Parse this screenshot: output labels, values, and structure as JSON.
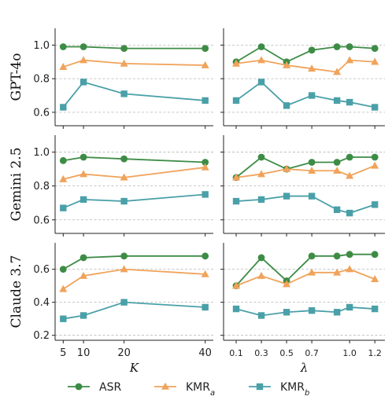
{
  "colors": {
    "ASR": "#3d8c45",
    "KMR_a": "#f0a35b",
    "KMR_b": "#4aa0a8"
  },
  "legend": [
    {
      "key": "ASR",
      "label": "ASR",
      "marker": "circle"
    },
    {
      "key": "KMR_a",
      "label": "KMR",
      "sub": "a",
      "marker": "triangle"
    },
    {
      "key": "KMR_b",
      "label": "KMR",
      "sub": "b",
      "marker": "square"
    }
  ],
  "chart_data": {
    "type": "line",
    "rows": [
      "GPT-4o",
      "Gemini 2.5",
      "Claude 3.7"
    ],
    "xlabels": {
      "left": "K",
      "right": "λ"
    },
    "left": {
      "x": [
        5,
        10,
        20,
        40
      ],
      "xticks": [
        "5",
        "10",
        "20",
        "40"
      ],
      "xlim": [
        3,
        42
      ]
    },
    "right": {
      "x": [
        0.1,
        0.3,
        0.5,
        0.7,
        0.9,
        1.0,
        1.2
      ],
      "xticks": [
        "0.1",
        "0.3",
        "0.5",
        "0.7",
        "1.0",
        "1.2"
      ],
      "xtick_values": [
        0.1,
        0.3,
        0.5,
        0.7,
        1.0,
        1.2
      ],
      "xlim": [
        0.0,
        1.28
      ]
    },
    "panels": [
      {
        "row": "GPT-4o",
        "ylim": [
          0.52,
          1.1
        ],
        "yticks": [
          "0.6",
          "0.8",
          "1.0"
        ],
        "ytick_values": [
          0.6,
          0.8,
          1.0
        ],
        "left": {
          "ASR": [
            0.99,
            0.99,
            0.98,
            0.98
          ],
          "KMR_a": [
            0.87,
            0.91,
            0.89,
            0.88
          ],
          "KMR_b": [
            0.63,
            0.78,
            0.71,
            0.67
          ]
        },
        "right": {
          "ASR": [
            0.9,
            0.99,
            0.9,
            0.97,
            0.99,
            0.99,
            0.98
          ],
          "KMR_a": [
            0.89,
            0.91,
            0.88,
            0.86,
            0.84,
            0.91,
            0.9
          ],
          "KMR_b": [
            0.67,
            0.78,
            0.64,
            0.7,
            0.67,
            0.66,
            0.63
          ]
        }
      },
      {
        "row": "Gemini 2.5",
        "ylim": [
          0.52,
          1.1
        ],
        "yticks": [
          "0.6",
          "0.8",
          "1.0"
        ],
        "ytick_values": [
          0.6,
          0.8,
          1.0
        ],
        "left": {
          "ASR": [
            0.95,
            0.97,
            0.96,
            0.94
          ],
          "KMR_a": [
            0.84,
            0.87,
            0.85,
            0.91
          ],
          "KMR_b": [
            0.67,
            0.72,
            0.71,
            0.75
          ]
        },
        "right": {
          "ASR": [
            0.85,
            0.97,
            0.9,
            0.94,
            0.94,
            0.97,
            0.97
          ],
          "KMR_a": [
            0.85,
            0.87,
            0.9,
            0.89,
            0.89,
            0.86,
            0.92
          ],
          "KMR_b": [
            0.71,
            0.72,
            0.74,
            0.74,
            0.66,
            0.64,
            0.69
          ]
        }
      },
      {
        "row": "Claude 3.7",
        "ylim": [
          0.17,
          0.76
        ],
        "yticks": [
          "0.2",
          "0.4",
          "0.6"
        ],
        "ytick_values": [
          0.2,
          0.4,
          0.6
        ],
        "left": {
          "ASR": [
            0.6,
            0.67,
            0.68,
            0.68
          ],
          "KMR_a": [
            0.48,
            0.56,
            0.6,
            0.57
          ],
          "KMR_b": [
            0.3,
            0.32,
            0.4,
            0.37
          ]
        },
        "right": {
          "ASR": [
            0.5,
            0.67,
            0.53,
            0.68,
            0.68,
            0.69,
            0.69
          ],
          "KMR_a": [
            0.5,
            0.56,
            0.51,
            0.58,
            0.58,
            0.6,
            0.54
          ],
          "KMR_b": [
            0.36,
            0.32,
            0.34,
            0.35,
            0.34,
            0.37,
            0.36
          ]
        }
      }
    ]
  }
}
